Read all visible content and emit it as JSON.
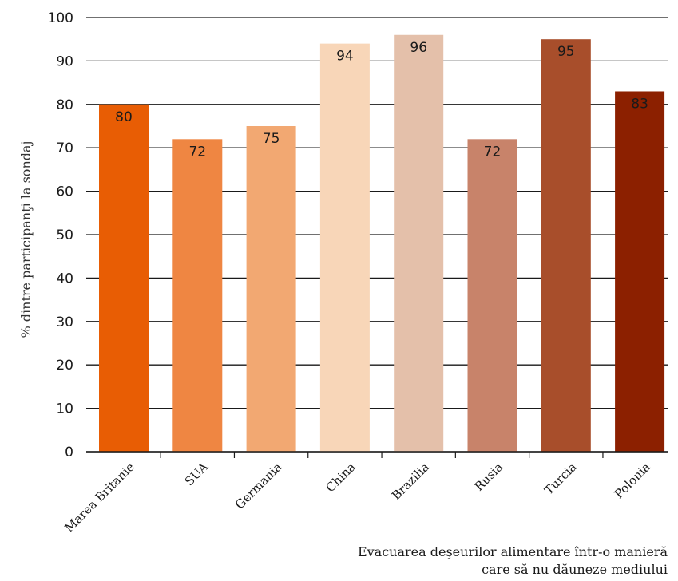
{
  "chart_data": {
    "type": "bar",
    "categories": [
      "Marea Britanie",
      "SUA",
      "Germania",
      "China",
      "Brazilia",
      "Rusia",
      "Turcia",
      "Polonia"
    ],
    "values": [
      80,
      72,
      75,
      94,
      96,
      72,
      95,
      83
    ],
    "value_labels": [
      "80",
      "72",
      "75",
      "94",
      "96",
      "72",
      "95",
      "83"
    ],
    "colors": [
      "#e85d04",
      "#ef8642",
      "#f2a872",
      "#f8d6b8",
      "#e4c0aa",
      "#c8836a",
      "#a84e2b",
      "#8c2000"
    ],
    "ylabel": "% dintre participanţi la sondaj",
    "xlabel_lines": [
      "Evacuarea deşeurilor alimentare într-o manieră",
      "care să nu dăuneze mediului"
    ],
    "ylim": [
      0,
      100
    ],
    "yticks": [
      0,
      10,
      20,
      30,
      40,
      50,
      60,
      70,
      80,
      90,
      100
    ],
    "grid": true,
    "gridline_color": "#1a1a1a"
  }
}
